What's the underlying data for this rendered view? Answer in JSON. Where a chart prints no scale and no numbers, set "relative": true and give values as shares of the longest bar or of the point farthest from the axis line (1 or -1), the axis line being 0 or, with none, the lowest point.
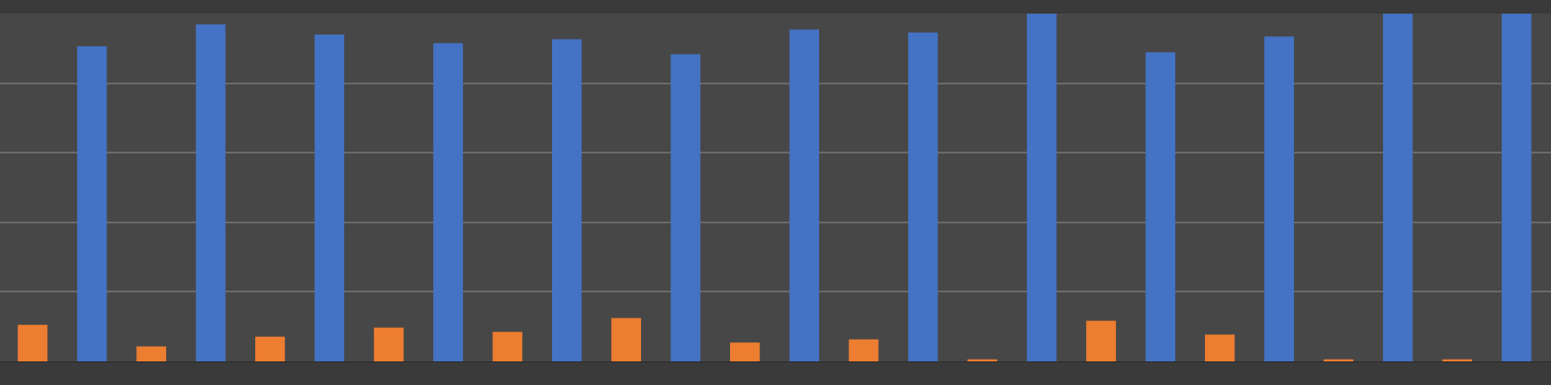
{
  "chart_data": {
    "type": "bar",
    "relative": true,
    "grid": "y",
    "categories": [
      null,
      null,
      null,
      null,
      null,
      null,
      null,
      null,
      null,
      null,
      null,
      null,
      null,
      null,
      null,
      null,
      null,
      null,
      null,
      null,
      null,
      null,
      null,
      null,
      null,
      null
    ],
    "values": [
      0.105,
      0.906,
      0.043,
      0.969,
      0.071,
      0.94,
      0.097,
      0.915,
      0.085,
      0.926,
      0.125,
      0.883,
      0.054,
      0.954,
      0.063,
      0.946,
      0.006,
      1,
      0.117,
      0.889,
      0.077,
      0.934,
      0.006,
      1,
      0.006,
      1
    ],
    "colors": [
      "#ed7d31",
      "#4472c4",
      "#ed7d31",
      "#4472c4",
      "#ed7d31",
      "#4472c4",
      "#ed7d31",
      "#4472c4",
      "#ed7d31",
      "#4472c4",
      "#ed7d31",
      "#4472c4",
      "#ed7d31",
      "#4472c4",
      "#ed7d31",
      "#4472c4",
      "#ed7d31",
      "#4472c4",
      "#ed7d31",
      "#4472c4",
      "#ed7d31",
      "#4472c4",
      "#ed7d31",
      "#4472c4",
      "#ed7d31",
      "#4472c4"
    ]
  }
}
